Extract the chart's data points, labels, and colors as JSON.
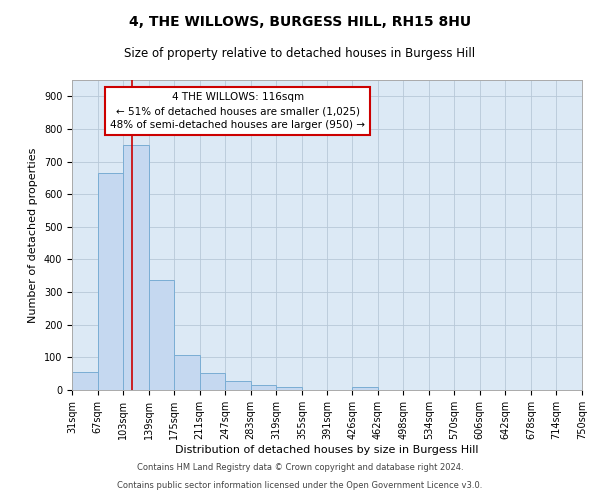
{
  "title": "4, THE WILLOWS, BURGESS HILL, RH15 8HU",
  "subtitle": "Size of property relative to detached houses in Burgess Hill",
  "xlabel": "Distribution of detached houses by size in Burgess Hill",
  "ylabel": "Number of detached properties",
  "footnote1": "Contains HM Land Registry data © Crown copyright and database right 2024.",
  "footnote2": "Contains public sector information licensed under the Open Government Licence v3.0.",
  "bin_edges": [
    31,
    67,
    103,
    139,
    175,
    211,
    247,
    283,
    319,
    355,
    391,
    426,
    462,
    498,
    534,
    570,
    606,
    642,
    678,
    714,
    750
  ],
  "bin_counts": [
    55,
    665,
    750,
    337,
    108,
    52,
    27,
    15,
    10,
    0,
    0,
    8,
    0,
    0,
    0,
    0,
    0,
    0,
    0,
    0
  ],
  "bar_color": "#c5d8f0",
  "bar_edge_color": "#7aadd4",
  "property_size": 116,
  "red_line_color": "#cc0000",
  "annotation_line1": "4 THE WILLOWS: 116sqm",
  "annotation_line2": "← 51% of detached houses are smaller (1,025)",
  "annotation_line3": "48% of semi-detached houses are larger (950) →",
  "annotation_box_color": "#ffffff",
  "annotation_box_edge_color": "#cc0000",
  "ylim": [
    0,
    950
  ],
  "background_color": "#dce9f5",
  "title_fontsize": 10,
  "subtitle_fontsize": 8.5,
  "axis_label_fontsize": 8,
  "tick_fontsize": 7,
  "footnote_fontsize": 6,
  "annotation_fontsize": 7.5
}
